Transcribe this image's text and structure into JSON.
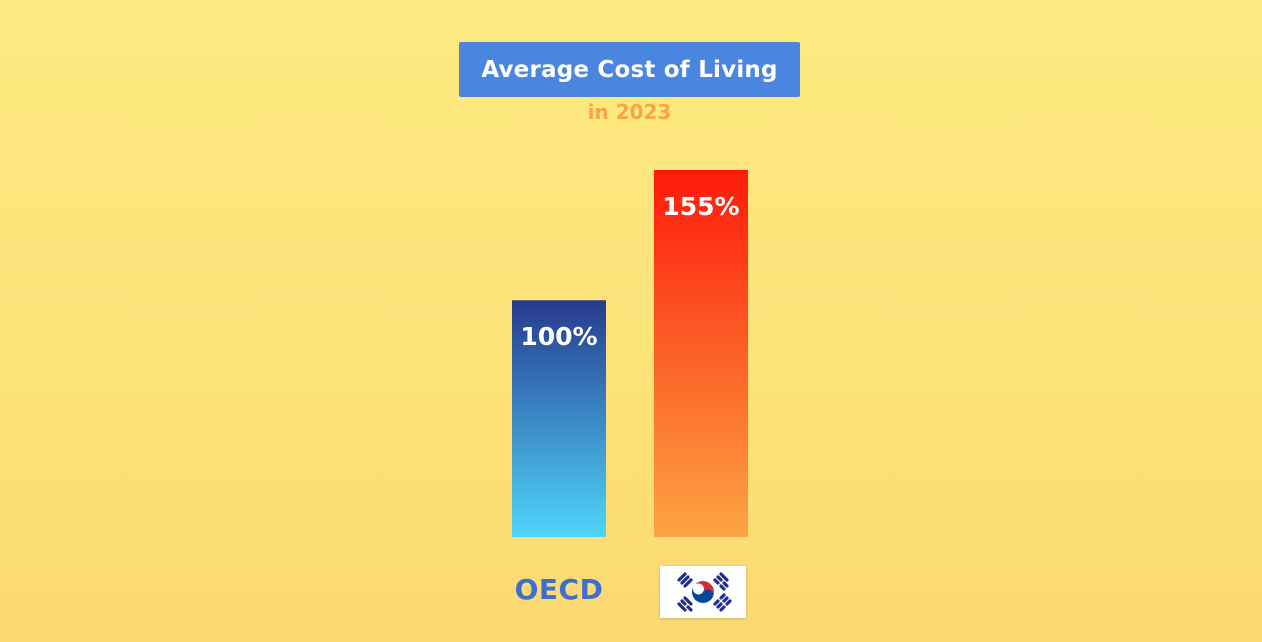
{
  "chart_data": {
    "type": "bar",
    "title": "Average Cost of Living",
    "subtitle": "in 2023",
    "categories": [
      "OECD",
      "South Korea"
    ],
    "category_labels": [
      "OECD",
      ""
    ],
    "values": [
      100,
      155
    ],
    "data_labels": [
      "100%",
      "155%"
    ],
    "ylim": [
      0,
      155
    ],
    "unit": "%",
    "grid": false,
    "legend": "none",
    "bar_gradients": [
      {
        "top": "#273b8f",
        "bottom": "#4fd6fb"
      },
      {
        "top": "#fe1a0b",
        "bottom": "#fba543"
      }
    ]
  },
  "colors": {
    "background": "#fde57c",
    "title_box": "#4a86e0",
    "title_text": "#ffffff",
    "subtitle_text": "#f6a647",
    "oecd_label": "#3c6fcf",
    "flag_red": "#cd2e3a",
    "flag_blue": "#0047a0",
    "flag_trigram": "#1f2e8c"
  },
  "icons": {
    "south_korea": "south-korea-flag-icon"
  }
}
